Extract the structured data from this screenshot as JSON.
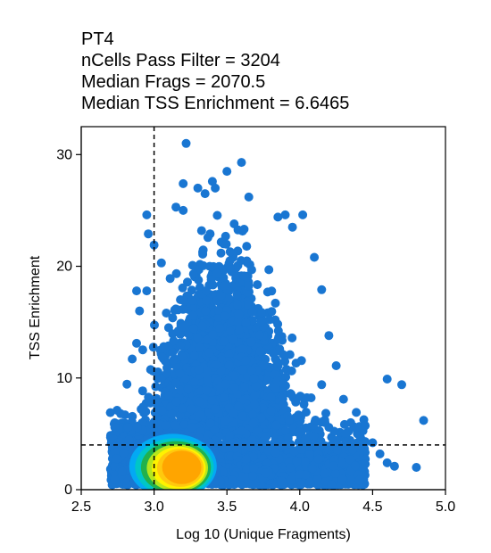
{
  "chart_data": {
    "type": "scatter",
    "title_lines": [
      "PT4",
      "nCells Pass Filter = 3204",
      "Median Frags = 2070.5",
      "Median TSS Enrichment = 6.6465"
    ],
    "xlabel": "Log 10 (Unique Fragments)",
    "ylabel": "TSS Enrichment",
    "xlim": [
      2.5,
      5.0
    ],
    "ylim": [
      0,
      32.5
    ],
    "x_ticks": [
      "2.5",
      "3.0",
      "3.5",
      "4.0",
      "4.5",
      "5.0"
    ],
    "y_ticks": [
      "0",
      "10",
      "20",
      "30"
    ],
    "grid": false,
    "cutoff_lines": {
      "x": 3.0,
      "y": 4
    },
    "point_color": "#1976D2",
    "density_colors": [
      "#1976D2",
      "#03A9F4",
      "#00C6C6",
      "#22B14C",
      "#B5E61D",
      "#FFF200",
      "#FFC90E",
      "#FFA500"
    ],
    "highlight_points": [
      {
        "x": 3.22,
        "y": 31.0
      },
      {
        "x": 3.6,
        "y": 29.3
      },
      {
        "x": 3.5,
        "y": 28.5
      },
      {
        "x": 3.2,
        "y": 27.4
      },
      {
        "x": 3.4,
        "y": 27.6
      },
      {
        "x": 3.42,
        "y": 27.0
      },
      {
        "x": 3.3,
        "y": 27.0
      },
      {
        "x": 3.65,
        "y": 26.2
      },
      {
        "x": 3.35,
        "y": 26.5
      },
      {
        "x": 3.15,
        "y": 25.3
      },
      {
        "x": 3.2,
        "y": 25.0
      },
      {
        "x": 2.95,
        "y": 24.6
      },
      {
        "x": 3.0,
        "y": 21.9
      },
      {
        "x": 2.96,
        "y": 22.9
      },
      {
        "x": 3.05,
        "y": 20.3
      },
      {
        "x": 2.88,
        "y": 17.8
      },
      {
        "x": 2.95,
        "y": 17.8
      },
      {
        "x": 2.9,
        "y": 16.0
      },
      {
        "x": 2.88,
        "y": 13.1
      },
      {
        "x": 2.85,
        "y": 11.7
      },
      {
        "x": 2.8,
        "y": 6.7
      },
      {
        "x": 2.7,
        "y": 6.9
      },
      {
        "x": 4.02,
        "y": 24.6
      },
      {
        "x": 3.95,
        "y": 23.5
      },
      {
        "x": 3.9,
        "y": 24.6
      },
      {
        "x": 3.85,
        "y": 24.4
      },
      {
        "x": 4.1,
        "y": 20.8
      },
      {
        "x": 4.15,
        "y": 17.9
      },
      {
        "x": 4.2,
        "y": 13.8
      },
      {
        "x": 4.25,
        "y": 11.1
      },
      {
        "x": 4.6,
        "y": 9.9
      },
      {
        "x": 4.7,
        "y": 9.4
      },
      {
        "x": 4.85,
        "y": 6.2
      },
      {
        "x": 4.8,
        "y": 2.0
      },
      {
        "x": 4.6,
        "y": 2.4
      },
      {
        "x": 4.65,
        "y": 2.1
      },
      {
        "x": 4.45,
        "y": 2.3
      },
      {
        "x": 4.55,
        "y": 3.2
      },
      {
        "x": 4.5,
        "y": 4.2
      },
      {
        "x": 4.4,
        "y": 4.1
      },
      {
        "x": 4.35,
        "y": 6.0
      },
      {
        "x": 4.3,
        "y": 8.1
      },
      {
        "x": 4.15,
        "y": 9.4
      }
    ]
  }
}
